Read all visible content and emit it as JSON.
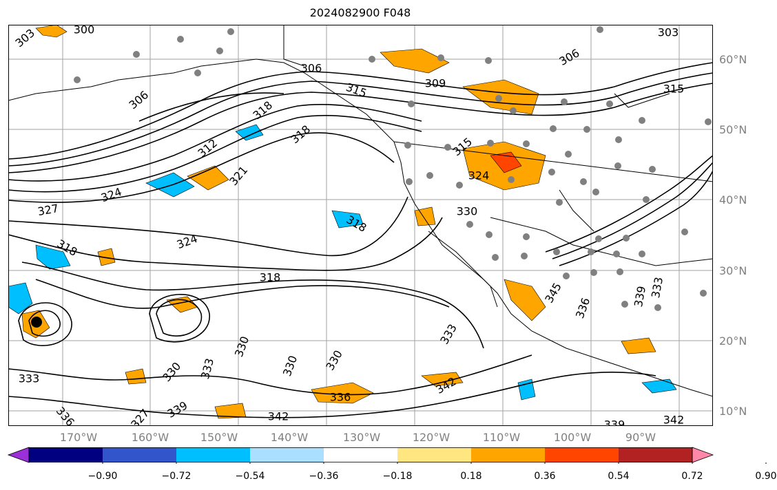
{
  "title": "2024082900 F048",
  "lat_labels": [
    "60°N",
    "50°N",
    "40°N",
    "30°N",
    "20°N",
    "10°N"
  ],
  "lon_labels": [
    "170°W",
    "160°W",
    "150°W",
    "140°W",
    "130°W",
    "120°W",
    "110°W",
    "100°W",
    "90°W"
  ],
  "contour_labels": [
    "300",
    "303",
    "303",
    "306",
    "306",
    "306",
    "309",
    "312",
    "315",
    "315",
    "315",
    "318",
    "318",
    "318",
    "318",
    "318",
    "321",
    "324",
    "324",
    "324",
    "327",
    "327",
    "330",
    "330",
    "330",
    "330",
    "330",
    "333",
    "333",
    "333",
    "333",
    "336",
    "336",
    "336",
    "339",
    "339",
    "339",
    "342",
    "342",
    "342",
    "345"
  ],
  "colorbar": {
    "tick_labels": [
      "−0.90",
      "−0.72",
      "−0.54",
      "−0.36",
      "−0.18",
      "0.18",
      "0.36",
      "0.54",
      "0.72",
      "0.90"
    ],
    "colors": [
      "#9b30d9",
      "#000080",
      "#3355cc",
      "#00bfff",
      "#aadfff",
      "#ffffff",
      "#ffe680",
      "#ffa500",
      "#ff4500",
      "#b22222",
      "#ff88aa"
    ]
  },
  "colors": {
    "contour": "#000000",
    "coast": "#000000",
    "grid": "#a0a0a0",
    "station_dot": "#808080",
    "storm_center": "#000000"
  }
}
